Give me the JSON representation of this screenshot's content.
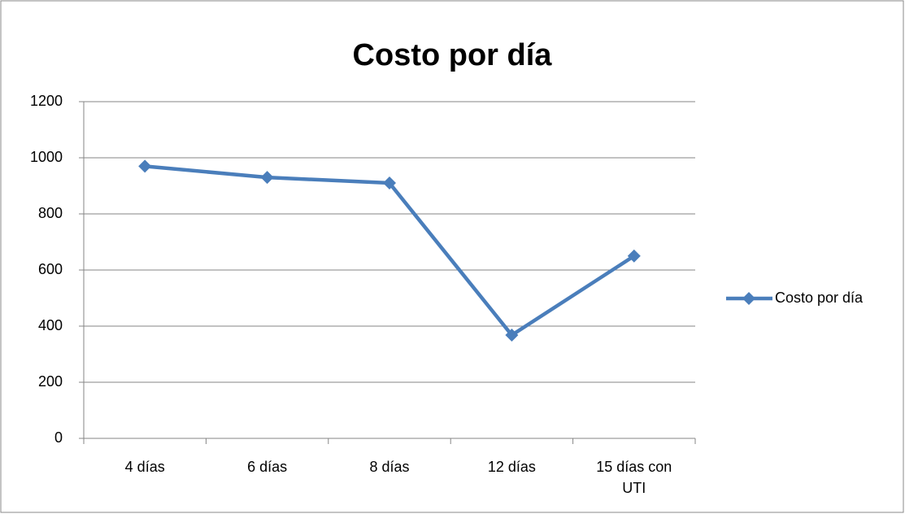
{
  "chart_data": {
    "type": "line",
    "title": "Costo por día",
    "categories": [
      "4 días",
      "6 días",
      "8 días",
      "12 días",
      "15 días con UTI"
    ],
    "series": [
      {
        "name": "Costo por día",
        "color": "#4a7ebb",
        "values": [
          970,
          930,
          910,
          368,
          650
        ]
      }
    ],
    "ylim": [
      0,
      1200
    ],
    "yticks": [
      0,
      200,
      400,
      600,
      800,
      1000,
      1200
    ],
    "grid": true,
    "legend": "right"
  }
}
